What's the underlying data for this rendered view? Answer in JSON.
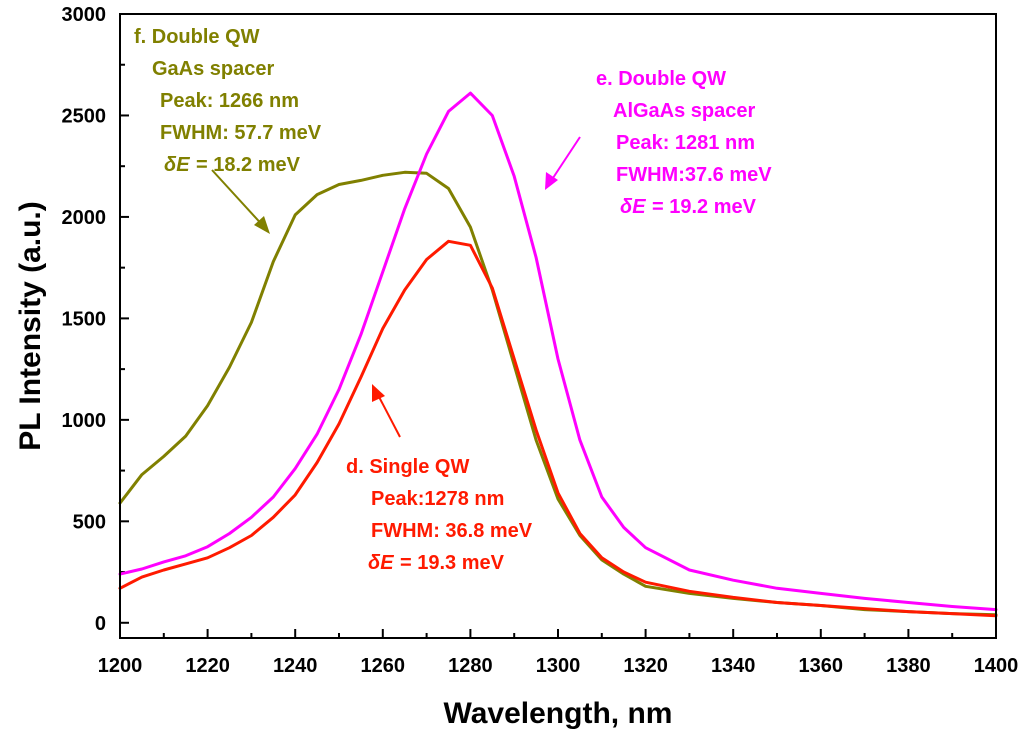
{
  "chart_data": {
    "type": "line",
    "xlabel": "Wavelength, nm",
    "ylabel": "PL Intensity (a.u.)",
    "xlim": [
      1200,
      1400
    ],
    "ylim": [
      -75,
      3000
    ],
    "xticks": [
      1200,
      1220,
      1240,
      1260,
      1280,
      1300,
      1320,
      1340,
      1360,
      1380,
      1400
    ],
    "yticks": [
      0,
      500,
      1000,
      1500,
      2000,
      2500,
      3000
    ],
    "grid": false,
    "series": [
      {
        "name": "f. Double QW GaAs spacer",
        "color": "#808000",
        "x": [
          1200,
          1205,
          1210,
          1215,
          1220,
          1225,
          1230,
          1235,
          1240,
          1245,
          1250,
          1255,
          1260,
          1265,
          1270,
          1275,
          1280,
          1285,
          1290,
          1295,
          1300,
          1305,
          1310,
          1315,
          1320,
          1330,
          1340,
          1350,
          1360,
          1370,
          1380,
          1390,
          1400
        ],
        "y": [
          590,
          730,
          820,
          920,
          1070,
          1260,
          1480,
          1780,
          2010,
          2110,
          2160,
          2180,
          2205,
          2220,
          2215,
          2140,
          1950,
          1640,
          1270,
          900,
          610,
          430,
          310,
          240,
          180,
          145,
          120,
          100,
          85,
          65,
          55,
          45,
          40
        ]
      },
      {
        "name": "e. Double QW AlGaAs spacer",
        "color": "#ff00ff",
        "x": [
          1200,
          1205,
          1210,
          1215,
          1220,
          1225,
          1230,
          1235,
          1240,
          1245,
          1250,
          1255,
          1260,
          1265,
          1270,
          1275,
          1280,
          1285,
          1290,
          1295,
          1300,
          1305,
          1310,
          1315,
          1320,
          1330,
          1340,
          1350,
          1360,
          1370,
          1380,
          1390,
          1400
        ],
        "y": [
          240,
          265,
          300,
          330,
          375,
          440,
          520,
          620,
          760,
          930,
          1150,
          1420,
          1730,
          2040,
          2310,
          2520,
          2610,
          2500,
          2200,
          1800,
          1300,
          900,
          620,
          470,
          370,
          260,
          210,
          170,
          145,
          120,
          100,
          80,
          65
        ]
      },
      {
        "name": "d. Single QW",
        "color": "#ff1a00",
        "x": [
          1200,
          1205,
          1210,
          1215,
          1220,
          1225,
          1230,
          1235,
          1240,
          1245,
          1250,
          1255,
          1260,
          1265,
          1270,
          1275,
          1280,
          1285,
          1290,
          1295,
          1300,
          1305,
          1310,
          1315,
          1320,
          1330,
          1340,
          1350,
          1360,
          1370,
          1380,
          1390,
          1400
        ],
        "y": [
          170,
          225,
          260,
          290,
          320,
          370,
          430,
          520,
          630,
          790,
          980,
          1210,
          1450,
          1640,
          1790,
          1880,
          1860,
          1650,
          1300,
          950,
          640,
          440,
          320,
          250,
          200,
          155,
          125,
          100,
          85,
          70,
          55,
          45,
          35
        ]
      }
    ],
    "annotations": [
      {
        "series": 0,
        "color": "#808000",
        "lines": [
          {
            "label": "f. Double QW"
          },
          {
            "label": "GaAs spacer"
          },
          {
            "label": "Peak: 1266 nm"
          },
          {
            "label": "FWHM: 57.7 meV"
          },
          {
            "label": "= 18.2 meV",
            "prefix": "δE"
          }
        ]
      },
      {
        "series": 1,
        "color": "#ff00ff",
        "lines": [
          {
            "label": "e. Double QW"
          },
          {
            "label": "AlGaAs spacer"
          },
          {
            "label": "Peak: 1281 nm"
          },
          {
            "label": "FWHM:37.6 meV"
          },
          {
            "label": "= 19.2 meV",
            "prefix": "δE"
          }
        ]
      },
      {
        "series": 2,
        "color": "#ff1a00",
        "lines": [
          {
            "label": "d. Single QW"
          },
          {
            "label": "Peak:1278 nm"
          },
          {
            "label": "FWHM: 36.8 meV"
          },
          {
            "label": "= 19.3 meV",
            "prefix": "δE"
          }
        ]
      }
    ]
  }
}
